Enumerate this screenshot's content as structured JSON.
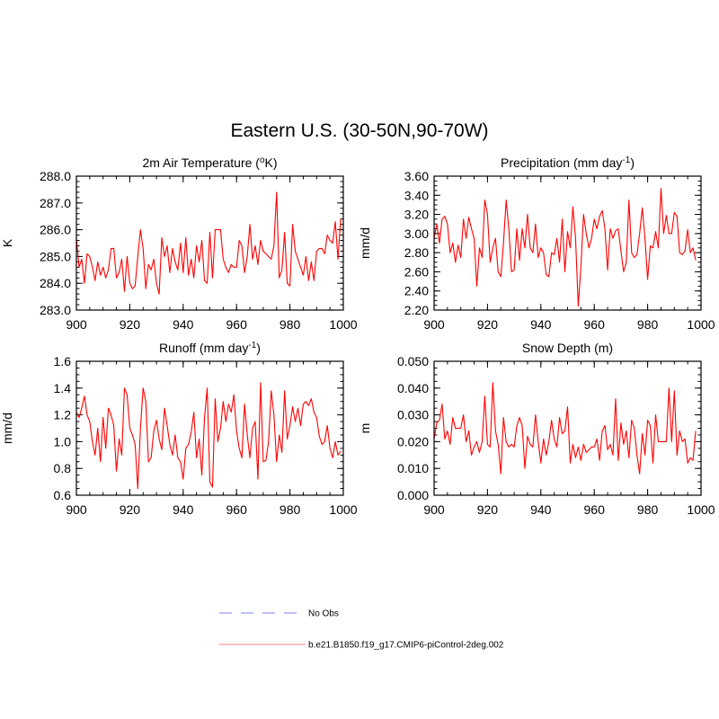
{
  "page_title": "Eastern U.S. (30-50N,90-70W)",
  "chart_data": [
    {
      "type": "line",
      "title": "2m Air Temperature (°K)",
      "title_parts": [
        "2m Air Temperature (",
        "o",
        "K)"
      ],
      "ylabel": "K",
      "xlim": [
        900,
        1000
      ],
      "ylim": [
        283.0,
        288.0
      ],
      "x_ticks": [
        900,
        920,
        940,
        960,
        980,
        1000
      ],
      "y_ticks": [
        283.0,
        284.0,
        285.0,
        286.0,
        287.0,
        288.0
      ],
      "y_tick_labels": [
        "283.0",
        "284.0",
        "285.0",
        "286.0",
        "287.0",
        "288.0"
      ],
      "y_minor_step": 0.2,
      "color": "#ff0000",
      "x_start": 900,
      "values": [
        285.7,
        284.6,
        284.9,
        284.0,
        285.1,
        285.0,
        284.6,
        284.1,
        284.8,
        284.3,
        284.6,
        284.2,
        284.5,
        285.3,
        285.3,
        284.2,
        284.4,
        284.9,
        283.7,
        285.0,
        284.0,
        283.8,
        283.9,
        285.0,
        286.0,
        285.3,
        283.8,
        284.7,
        284.5,
        284.9,
        284.0,
        283.6,
        285.7,
        285.0,
        285.4,
        284.4,
        285.3,
        284.8,
        284.5,
        285.5,
        284.4,
        285.7,
        284.3,
        284.9,
        284.2,
        285.4,
        284.8,
        285.6,
        284.1,
        284.0,
        285.9,
        284.2,
        286.0,
        286.0,
        286.0,
        284.9,
        284.6,
        284.4,
        284.7,
        284.6,
        284.6,
        285.6,
        285.4,
        284.4,
        285.0,
        286.2,
        284.9,
        285.4,
        284.7,
        285.6,
        285.2,
        285.1,
        285.0,
        284.9,
        285.4,
        287.4,
        284.2,
        284.5,
        285.9,
        284.0,
        283.9,
        286.2,
        285.2,
        284.9,
        284.6,
        284.3,
        285.0,
        284.1,
        284.8,
        284.1,
        285.2,
        285.3,
        285.3,
        285.1,
        285.8,
        285.6,
        285.5,
        286.3,
        284.9,
        286.4
      ]
    },
    {
      "type": "line",
      "title": "Precipitation (mm day⁻¹)",
      "title_parts": [
        "Precipitation (mm day",
        "-1",
        ")"
      ],
      "ylabel": "mm/d",
      "xlim": [
        900,
        1000
      ],
      "ylim": [
        2.2,
        3.6
      ],
      "x_ticks": [
        900,
        920,
        940,
        960,
        980,
        1000
      ],
      "y_ticks": [
        2.2,
        2.4,
        2.6,
        2.8,
        3.0,
        3.2,
        3.4,
        3.6
      ],
      "y_tick_labels": [
        "2.20",
        "2.40",
        "2.60",
        "2.80",
        "3.00",
        "3.20",
        "3.40",
        "3.60"
      ],
      "y_minor_step": 0.05,
      "color": "#ff0000",
      "x_start": 900,
      "values": [
        2.95,
        3.1,
        2.9,
        3.15,
        3.18,
        3.1,
        2.8,
        2.9,
        2.7,
        2.88,
        2.75,
        3.15,
        2.95,
        3.17,
        3.05,
        2.95,
        2.45,
        2.85,
        2.75,
        3.35,
        3.2,
        2.7,
        2.85,
        2.95,
        2.6,
        2.55,
        2.9,
        3.35,
        3.05,
        2.6,
        2.62,
        3.05,
        2.72,
        3.05,
        2.85,
        3.2,
        2.85,
        2.8,
        3.1,
        2.75,
        2.85,
        2.8,
        2.57,
        2.55,
        2.8,
        2.78,
        2.95,
        2.7,
        3.15,
        2.6,
        3.02,
        2.85,
        3.28,
        2.95,
        2.24,
        2.65,
        3.2,
        3.0,
        2.85,
        2.95,
        3.15,
        3.05,
        3.18,
        3.24,
        3.05,
        2.62,
        3.05,
        2.95,
        3.03,
        3.05,
        2.82,
        2.6,
        2.7,
        3.35,
        2.8,
        2.75,
        2.78,
        3.0,
        3.27,
        2.95,
        2.52,
        2.87,
        2.85,
        3.02,
        2.85,
        3.47,
        3.0,
        3.19,
        3.0,
        3.0,
        3.22,
        3.18,
        2.8,
        2.78,
        2.82,
        3.04,
        2.8,
        2.85,
        2.72
      ]
    },
    {
      "type": "line",
      "title": "Runoff (mm day⁻¹)",
      "title_parts": [
        "Runoff (mm day",
        "-1",
        ")"
      ],
      "ylabel": "mm/d",
      "xlim": [
        900,
        1000
      ],
      "ylim": [
        0.6,
        1.6
      ],
      "x_ticks": [
        900,
        920,
        940,
        960,
        980,
        1000
      ],
      "y_ticks": [
        0.6,
        0.8,
        1.0,
        1.2,
        1.4,
        1.6
      ],
      "y_tick_labels": [
        "0.6",
        "0.8",
        "1.0",
        "1.2",
        "1.4",
        "1.6"
      ],
      "y_minor_step": 0.05,
      "color": "#ff0000",
      "x_start": 900,
      "values": [
        1.22,
        1.18,
        1.25,
        1.34,
        1.2,
        1.15,
        1.0,
        0.9,
        1.1,
        0.85,
        1.18,
        0.95,
        1.25,
        1.2,
        1.12,
        0.78,
        1.02,
        0.9,
        1.4,
        1.35,
        1.1,
        1.05,
        0.98,
        0.65,
        1.1,
        1.4,
        1.3,
        0.85,
        0.88,
        1.08,
        1.16,
        1.02,
        0.94,
        1.25,
        1.12,
        0.98,
        0.9,
        1.05,
        0.88,
        0.85,
        0.72,
        0.95,
        0.98,
        1.07,
        1.22,
        0.88,
        1.02,
        0.75,
        1.18,
        1.4,
        0.7,
        0.66,
        1.32,
        1.0,
        1.1,
        1.3,
        1.15,
        1.28,
        1.22,
        1.35,
        1.08,
        0.95,
        0.88,
        1.28,
        1.05,
        0.88,
        1.1,
        1.15,
        0.72,
        1.44,
        0.85,
        0.86,
        1.0,
        1.38,
        1.2,
        0.85,
        1.05,
        0.92,
        1.38,
        1.02,
        1.12,
        1.26,
        1.15,
        1.25,
        1.12,
        1.28,
        1.3,
        1.27,
        1.32,
        1.22,
        1.18,
        1.04,
        0.98,
        1.0,
        1.12,
        0.95,
        0.88,
        1.0,
        0.9,
        0.93
      ]
    },
    {
      "type": "line",
      "title": "Snow Depth (m)",
      "title_parts": [
        "Snow Depth (m)",
        "",
        ""
      ],
      "ylabel": "m",
      "xlim": [
        900,
        1000
      ],
      "ylim": [
        0.0,
        0.05
      ],
      "x_ticks": [
        900,
        920,
        940,
        960,
        980,
        1000
      ],
      "y_ticks": [
        0.0,
        0.01,
        0.02,
        0.03,
        0.04,
        0.05
      ],
      "y_tick_labels": [
        "0.000",
        "0.010",
        "0.020",
        "0.030",
        "0.040",
        "0.050"
      ],
      "y_minor_step": 0.0025,
      "color": "#ff0000",
      "x_start": 900,
      "values": [
        0.021,
        0.027,
        0.028,
        0.034,
        0.021,
        0.024,
        0.019,
        0.029,
        0.025,
        0.025,
        0.025,
        0.03,
        0.02,
        0.024,
        0.015,
        0.018,
        0.02,
        0.016,
        0.02,
        0.037,
        0.019,
        0.018,
        0.042,
        0.024,
        0.019,
        0.008,
        0.029,
        0.02,
        0.018,
        0.019,
        0.018,
        0.026,
        0.029,
        0.026,
        0.01,
        0.022,
        0.019,
        0.018,
        0.03,
        0.02,
        0.012,
        0.021,
        0.015,
        0.02,
        0.028,
        0.021,
        0.018,
        0.029,
        0.023,
        0.024,
        0.033,
        0.012,
        0.019,
        0.014,
        0.018,
        0.013,
        0.019,
        0.016,
        0.017,
        0.018,
        0.018,
        0.021,
        0.013,
        0.024,
        0.026,
        0.017,
        0.019,
        0.015,
        0.036,
        0.013,
        0.027,
        0.019,
        0.024,
        0.014,
        0.028,
        0.025,
        0.015,
        0.008,
        0.023,
        0.015,
        0.028,
        0.026,
        0.012,
        0.03,
        0.02,
        0.02,
        0.02,
        0.02,
        0.04,
        0.02,
        0.039,
        0.015,
        0.024,
        0.02,
        0.021,
        0.012,
        0.014,
        0.013,
        0.024
      ]
    }
  ],
  "legend": {
    "items": [
      {
        "label": "No Obs",
        "style": "dashed",
        "color": "#9999ff"
      },
      {
        "label": "b.e21.B1850.f19_g17.CMIP6-piControl-2deg.002",
        "style": "solid",
        "color": "#ff0000"
      }
    ]
  }
}
